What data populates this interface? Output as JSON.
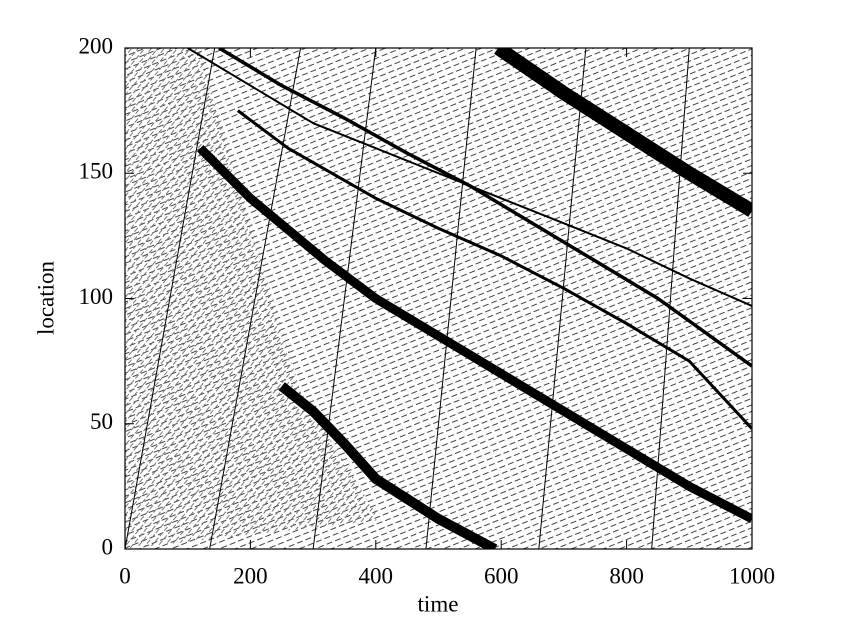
{
  "chart_data": {
    "type": "line",
    "xlabel": "time",
    "ylabel": "location",
    "xlim": [
      0,
      1000
    ],
    "ylim": [
      0,
      200
    ],
    "xticks": [
      0,
      200,
      400,
      600,
      800,
      1000
    ],
    "yticks": [
      0,
      50,
      100,
      150,
      200
    ],
    "series": [
      {
        "color": "#000000",
        "x": [
          595,
          700,
          800,
          900,
          1000
        ],
        "values": [
          200,
          182,
          166,
          150,
          135
        ]
      },
      {
        "color": "#000000",
        "x": [
          100,
          200,
          300,
          400,
          500,
          600,
          700,
          800,
          900,
          1000
        ],
        "values": [
          200,
          185,
          170,
          160,
          150,
          140,
          130,
          120,
          108,
          97
        ]
      },
      {
        "color": "#000000",
        "x": [
          150,
          250,
          350,
          450,
          550,
          650,
          750,
          850,
          1000
        ],
        "values": [
          200,
          185,
          172,
          158,
          145,
          130,
          115,
          100,
          73
        ]
      },
      {
        "color": "#000000",
        "x": [
          180,
          260,
          400,
          500,
          600,
          700,
          800,
          900,
          1000
        ],
        "values": [
          175,
          160,
          140,
          128,
          117,
          104,
          90,
          75,
          48
        ]
      },
      {
        "color": "#000000",
        "x": [
          120,
          200,
          320,
          400,
          500,
          600,
          700,
          800,
          900,
          1000
        ],
        "values": [
          160,
          140,
          115,
          100,
          85,
          70,
          55,
          40,
          25,
          12
        ]
      },
      {
        "color": "#000000",
        "x": [
          250,
          300,
          350,
          400,
          450,
          500,
          590
        ],
        "values": [
          65,
          55,
          42,
          28,
          20,
          12,
          0
        ]
      },
      {
        "color": "#000000",
        "x": [
          0,
          143
        ],
        "values": [
          0,
          200
        ]
      },
      {
        "color": "#000000",
        "x": [
          135,
          280
        ],
        "values": [
          0,
          200
        ]
      },
      {
        "color": "#000000",
        "x": [
          300,
          400
        ],
        "values": [
          0,
          200
        ]
      },
      {
        "color": "#000000",
        "x": [
          480,
          560
        ],
        "values": [
          0,
          200
        ]
      },
      {
        "color": "#000000",
        "x": [
          660,
          735
        ],
        "values": [
          0,
          200
        ]
      },
      {
        "color": "#000000",
        "x": [
          840,
          900
        ],
        "values": [
          0,
          200
        ]
      }
    ]
  }
}
